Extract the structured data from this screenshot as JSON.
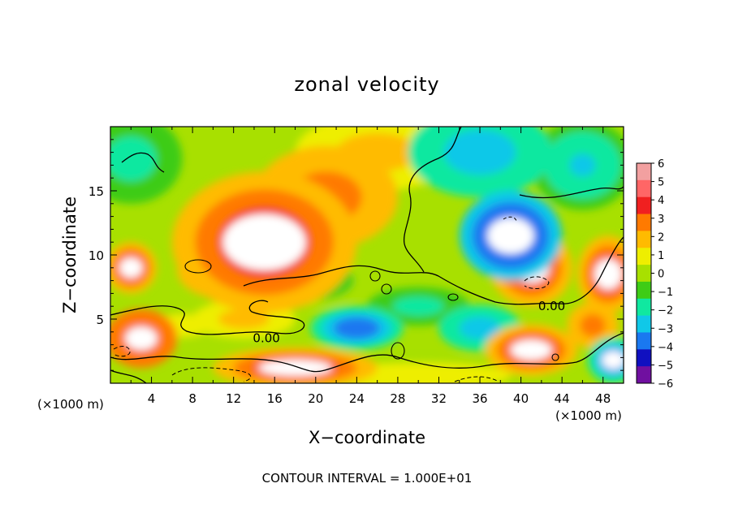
{
  "chart_data": {
    "type": "heatmap",
    "title": "zonal velocity",
    "xlabel": "X−coordinate",
    "ylabel": "Z−coordinate",
    "x_unit_left": "(×1000 m)",
    "x_unit_right": "(×1000 m)",
    "footer": "CONTOUR INTERVAL = 1.000E+01",
    "xlim": [
      0,
      50
    ],
    "ylim": [
      0,
      20
    ],
    "x_ticks": [
      "4",
      "8",
      "12",
      "16",
      "20",
      "24",
      "28",
      "32",
      "36",
      "40",
      "44",
      "48"
    ],
    "x_tick_values": [
      4,
      8,
      12,
      16,
      20,
      24,
      28,
      32,
      36,
      40,
      44,
      48
    ],
    "y_ticks": [
      "5",
      "10",
      "15"
    ],
    "y_tick_values": [
      5,
      10,
      15
    ],
    "contour_labels": [
      {
        "text": "0.00",
        "x": 15.2,
        "y": 3.2
      },
      {
        "text": "0.00",
        "x": 43.0,
        "y": 5.7
      }
    ],
    "colorbar": {
      "labels": [
        "6",
        "5",
        "4",
        "3",
        "2",
        "1",
        "0",
        "−1",
        "−2",
        "−3",
        "−4",
        "−5",
        "−6"
      ],
      "colors": [
        "#f2a0a0",
        "#ff6666",
        "#f02020",
        "#ff7a00",
        "#ffbb00",
        "#eeee00",
        "#a8e000",
        "#3ecc16",
        "#10e8a0",
        "#10c8e8",
        "#1a78f0",
        "#1010c0",
        "#7010a0"
      ]
    },
    "field_blobs": [
      {
        "x": 15,
        "y": 11.0,
        "rx": 9.0,
        "ry": 5.5,
        "value": 4.6
      },
      {
        "x": 21,
        "y": 14.5,
        "rx": 7.0,
        "ry": 4.0,
        "value": 3.2
      },
      {
        "x": 11,
        "y": 8.8,
        "rx": 4.5,
        "ry": 2.2,
        "value": 3.5
      },
      {
        "x": 26,
        "y": 18.0,
        "rx": 8.0,
        "ry": 3.0,
        "value": 2.2
      },
      {
        "x": 2,
        "y": 17.5,
        "rx": 5.0,
        "ry": 3.5,
        "value": -1.8
      },
      {
        "x": 2,
        "y": 9.0,
        "rx": 2.5,
        "ry": 2.0,
        "value": 4.5
      },
      {
        "x": 3,
        "y": 3.5,
        "rx": 3.5,
        "ry": 2.3,
        "value": 5.0
      },
      {
        "x": 18,
        "y": 1.2,
        "rx": 8.0,
        "ry": 1.6,
        "value": 4.8
      },
      {
        "x": 39,
        "y": 11.5,
        "rx": 5.0,
        "ry": 3.5,
        "value": -5.2
      },
      {
        "x": 36,
        "y": 18.0,
        "rx": 7.0,
        "ry": 3.5,
        "value": -3.0
      },
      {
        "x": 46,
        "y": 17.0,
        "rx": 5.0,
        "ry": 3.5,
        "value": -2.5
      },
      {
        "x": 41,
        "y": 9.0,
        "rx": 4.0,
        "ry": 3.0,
        "value": 4.6
      },
      {
        "x": 48.5,
        "y": 8.5,
        "rx": 3.0,
        "ry": 3.0,
        "value": 4.5
      },
      {
        "x": 24,
        "y": 4.3,
        "rx": 4.5,
        "ry": 1.7,
        "value": -4.2
      },
      {
        "x": 36,
        "y": 4.3,
        "rx": 4.0,
        "ry": 1.8,
        "value": -3.2
      },
      {
        "x": 30,
        "y": 6.0,
        "rx": 5.0,
        "ry": 1.5,
        "value": -2.0
      },
      {
        "x": 13,
        "y": 5.0,
        "rx": 5.0,
        "ry": 1.5,
        "value": 2.0
      },
      {
        "x": 41,
        "y": 2.6,
        "rx": 4.5,
        "ry": 2.0,
        "value": 4.8
      },
      {
        "x": 47,
        "y": 4.5,
        "rx": 2.5,
        "ry": 1.8,
        "value": 3.5
      },
      {
        "x": 30,
        "y": 0.6,
        "rx": 12.0,
        "ry": 1.3,
        "value": 0.9
      },
      {
        "x": 20,
        "y": 8.0,
        "rx": 5.0,
        "ry": 2.0,
        "value": -0.8
      },
      {
        "x": 49,
        "y": 1.8,
        "rx": 2.5,
        "ry": 1.8,
        "value": -4.5
      },
      {
        "x": 7,
        "y": 4.5,
        "rx": 3.5,
        "ry": 1.2,
        "value": 0.8
      }
    ]
  }
}
